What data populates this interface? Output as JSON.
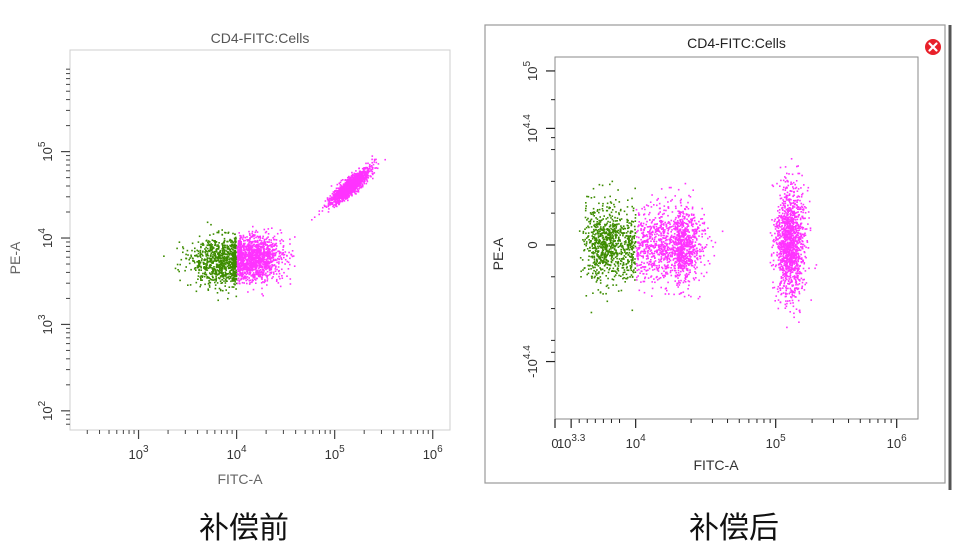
{
  "colors": {
    "population_gated": "#ff33ff",
    "population_other": "#3d8c00",
    "close_button": "#e8202a"
  },
  "close_icon": "close-icon",
  "chart_data": [
    {
      "type": "scatter",
      "title": "CD4-FITC:Cells",
      "xlabel": "FITC-A",
      "ylabel": "PE-A",
      "caption": "补偿前",
      "x_scale": "log",
      "y_scale": "log",
      "xlim": [
        200,
        1500000
      ],
      "ylim": [
        60,
        1500000
      ],
      "grid": false,
      "x_ticks": [
        {
          "value": 1000,
          "base": "10",
          "exp": "3"
        },
        {
          "value": 10000,
          "base": "10",
          "exp": "4"
        },
        {
          "value": 100000,
          "base": "10",
          "exp": "5"
        },
        {
          "value": 1000000,
          "base": "10",
          "exp": "6"
        }
      ],
      "y_ticks": [
        {
          "value": 100,
          "base": "10",
          "exp": "2"
        },
        {
          "value": 1000,
          "base": "10",
          "exp": "3"
        },
        {
          "value": 10000,
          "base": "10",
          "exp": "4"
        },
        {
          "value": 100000,
          "base": "10",
          "exp": "5"
        }
      ],
      "series": [
        {
          "color": "#3d8c00",
          "approx_events": 900,
          "clusters": [
            {
              "x_center": 7000,
              "y_center": 5500,
              "x_spread_log10": 0.17,
              "y_spread_log10": 0.14,
              "x_max": 9800
            }
          ]
        },
        {
          "color": "#ff33ff",
          "approx_events": 2700,
          "clusters": [
            {
              "x_center": 15000,
              "y_center": 6000,
              "x_spread_log10": 0.14,
              "y_spread_log10": 0.13,
              "x_min": 10000
            },
            {
              "x_center": 140000,
              "y_center": 40000,
              "x_spread_log10": 0.1,
              "y_spread_log10": 0.1
            }
          ]
        }
      ]
    },
    {
      "type": "scatter",
      "title": "CD4-FITC:Cells",
      "xlabel": "FITC-A",
      "ylabel": "PE-A",
      "caption": "补偿后",
      "x_scale": "biexponential",
      "y_scale": "biexponential",
      "xlim": [
        0,
        1500000
      ],
      "ylim": [
        -100000,
        140000
      ],
      "grid": false,
      "x_ticks": [
        {
          "value": 0,
          "base": "0",
          "exp": ""
        },
        {
          "value": 2000,
          "base": "10",
          "exp": "3.3"
        },
        {
          "value": 10000,
          "base": "10",
          "exp": "4"
        },
        {
          "value": 100000,
          "base": "10",
          "exp": "5"
        },
        {
          "value": 1000000,
          "base": "10",
          "exp": "6"
        }
      ],
      "y_ticks": [
        {
          "value": -25000,
          "base": "-10",
          "exp": "4.4"
        },
        {
          "value": 0,
          "base": "0",
          "exp": ""
        },
        {
          "value": 25000,
          "base": "10",
          "exp": "4.4"
        },
        {
          "value": 100000,
          "base": "10",
          "exp": "5"
        }
      ],
      "series": [
        {
          "color": "#3d8c00",
          "approx_events": 900,
          "clusters": [
            {
              "x_center": 6500,
              "y_center": 200,
              "x_spread_log10": 0.12,
              "y_spread_log10": 0.1,
              "x_max": 9900
            }
          ]
        },
        {
          "color": "#ff33ff",
          "approx_events": 2700,
          "clusters": [
            {
              "x_center": 15000,
              "y_center": 0,
              "x_spread_log10": 0.1,
              "y_spread_log10": 0.1,
              "x_min": 10000
            },
            {
              "x_center": 130000,
              "y_center": 300,
              "x_spread_log10": 0.06,
              "y_spread_log10": 0.14
            }
          ]
        }
      ]
    }
  ]
}
